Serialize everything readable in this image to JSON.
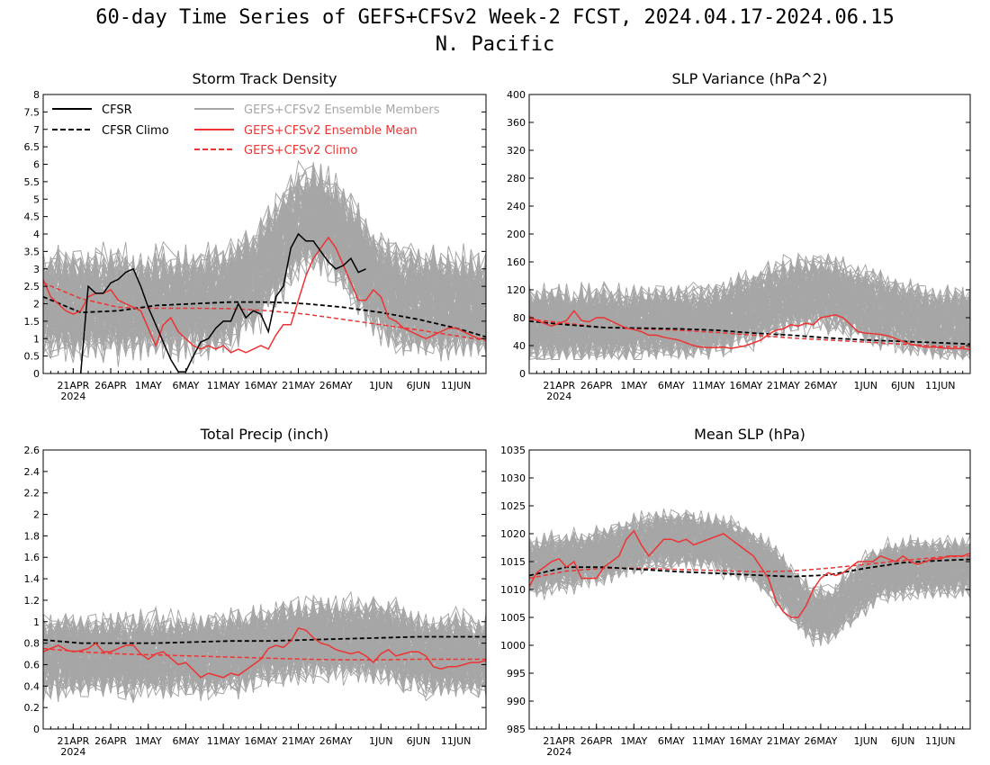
{
  "figure": {
    "title_line1": "60-day Time Series of GEFS+CFSv2 Week-2 FCST, 2024.04.17-2024.06.15",
    "title_line2": "N. Pacific"
  },
  "colors": {
    "cfsr": "#000000",
    "ensemble_members": "#a6a6a6",
    "ensemble_mean": "#ee3333",
    "gefs_climo": "#ee3333",
    "cfsr_climo": "#000000"
  },
  "legend": {
    "cfsr": "CFSR",
    "cfsr_climo": "CFSR Climo",
    "members": "GEFS+CFSv2 Ensemble Members",
    "mean": "GEFS+CFSv2 Ensemble Mean",
    "gefs_climo": "GEFS+CFSv2 Climo"
  },
  "x_axis": {
    "ticks": [
      {
        "day": 4,
        "label": "21APR"
      },
      {
        "day": 9,
        "label": "26APR"
      },
      {
        "day": 14,
        "label": "1MAY"
      },
      {
        "day": 19,
        "label": "6MAY"
      },
      {
        "day": 24,
        "label": "11MAY"
      },
      {
        "day": 29,
        "label": "16MAY"
      },
      {
        "day": 34,
        "label": "21MAY"
      },
      {
        "day": 39,
        "label": "26MAY"
      },
      {
        "day": 45,
        "label": "1JUN"
      },
      {
        "day": 50,
        "label": "6JUN"
      },
      {
        "day": 55,
        "label": "11JUN"
      }
    ],
    "year_label": "2024",
    "xlim": [
      0,
      59
    ]
  },
  "chart_data": [
    {
      "type": "line",
      "title": "Storm Track Density",
      "ylim": [
        0,
        8
      ],
      "yticks": [
        0,
        0.5,
        1,
        1.5,
        2,
        2.5,
        3,
        3.5,
        4,
        4.5,
        5,
        5.5,
        6,
        6.5,
        7,
        7.5,
        8
      ],
      "has_legend": true,
      "members": {
        "base": 2.0,
        "events": [
          [
            36,
            5,
            2.5
          ]
        ],
        "spread": 1.6,
        "max": 6.1,
        "min": 0
      },
      "series": [
        {
          "name": "GEFS+CFSv2 Ensemble Mean",
          "role": "mean",
          "x": [
            0,
            1,
            2,
            3,
            4,
            5,
            6,
            7,
            8,
            9,
            10,
            11,
            12,
            13,
            14,
            15,
            16,
            17,
            18,
            19,
            20,
            21,
            22,
            23,
            24,
            25,
            26,
            27,
            28,
            29,
            30,
            31,
            32,
            33,
            34,
            35,
            36,
            37,
            38,
            39,
            40,
            41,
            42,
            43,
            44,
            45,
            46,
            47,
            48,
            49,
            50,
            51,
            52,
            53,
            54,
            55,
            56,
            57,
            58,
            59
          ],
          "y": [
            2.7,
            2.2,
            2.0,
            1.8,
            1.7,
            1.8,
            2.2,
            2.3,
            2.3,
            2.4,
            2.1,
            2.0,
            1.9,
            1.8,
            1.3,
            0.8,
            1.4,
            1.6,
            1.2,
            1.0,
            0.8,
            0.7,
            0.8,
            0.7,
            0.8,
            0.6,
            0.7,
            0.6,
            0.7,
            0.8,
            0.7,
            1.1,
            1.4,
            1.4,
            2.1,
            2.8,
            3.3,
            3.6,
            3.9,
            3.6,
            3.1,
            2.6,
            2.1,
            2.1,
            2.4,
            2.2,
            1.6,
            1.5,
            1.3,
            1.2,
            1.1,
            1.0,
            1.1,
            1.2,
            1.3,
            1.3,
            1.2,
            1.1,
            1.0,
            1.0
          ]
        },
        {
          "name": "GEFS+CFSv2 Climo",
          "role": "gefs_climo",
          "x": [
            0,
            5,
            10,
            15,
            20,
            25,
            30,
            35,
            40,
            45,
            50,
            55,
            59
          ],
          "y": [
            2.6,
            2.15,
            1.9,
            1.87,
            1.87,
            1.86,
            1.8,
            1.7,
            1.55,
            1.4,
            1.25,
            1.08,
            0.95
          ]
        },
        {
          "name": "CFSR Climo",
          "role": "cfsr_climo",
          "x": [
            0,
            5,
            10,
            15,
            20,
            25,
            30,
            35,
            40,
            45,
            50,
            55,
            59
          ],
          "y": [
            2.2,
            1.75,
            1.8,
            1.95,
            2.0,
            2.05,
            2.05,
            2.0,
            1.9,
            1.75,
            1.55,
            1.3,
            1.05
          ]
        },
        {
          "name": "CFSR",
          "role": "cfsr",
          "x": [
            5,
            6,
            7,
            8,
            9,
            10,
            11,
            12,
            13,
            14,
            15,
            16,
            17,
            18,
            19,
            20,
            21,
            22,
            23,
            24,
            25,
            26,
            27,
            28,
            29,
            30,
            31,
            32,
            33,
            34,
            35,
            36,
            37,
            38,
            39,
            40,
            41,
            42,
            43,
            44,
            45
          ],
          "y": [
            0,
            2.5,
            2.3,
            2.3,
            2.6,
            2.7,
            2.9,
            3.0,
            2.5,
            1.9,
            1.4,
            0.9,
            0.4,
            0.05,
            0.05,
            0.5,
            0.9,
            1.0,
            1.3,
            1.5,
            1.5,
            2.0,
            1.6,
            1.8,
            1.7,
            1.2,
            2.2,
            2.5,
            3.6,
            4.0,
            3.8,
            3.8,
            3.5,
            3.2,
            3.0,
            3.1,
            3.3,
            2.9,
            3.0,
            null,
            null
          ]
        }
      ]
    },
    {
      "type": "line",
      "title": "SLP Variance (hPa^2)",
      "ylim": [
        0,
        400
      ],
      "yticks": [
        0,
        40,
        80,
        120,
        160,
        200,
        240,
        280,
        320,
        360,
        400
      ],
      "has_legend": false,
      "members": {
        "base": 70,
        "events": [
          [
            38,
            7,
            45
          ]
        ],
        "spread": 55,
        "max": 205,
        "min": 20
      },
      "series": [
        {
          "name": "GEFS+CFSv2 Ensemble Mean",
          "role": "mean",
          "x": [
            0,
            1,
            2,
            3,
            4,
            5,
            6,
            7,
            8,
            9,
            10,
            11,
            12,
            13,
            14,
            15,
            16,
            17,
            18,
            19,
            20,
            21,
            22,
            23,
            24,
            25,
            26,
            27,
            28,
            29,
            30,
            31,
            32,
            33,
            34,
            35,
            36,
            37,
            38,
            39,
            40,
            41,
            42,
            43,
            44,
            45,
            46,
            47,
            48,
            49,
            50,
            51,
            52,
            53,
            54,
            55,
            56,
            57,
            58,
            59
          ],
          "y": [
            82,
            76,
            72,
            68,
            72,
            76,
            90,
            76,
            74,
            80,
            80,
            75,
            70,
            65,
            63,
            60,
            55,
            55,
            52,
            50,
            48,
            44,
            40,
            38,
            37,
            37,
            38,
            36,
            38,
            40,
            44,
            48,
            56,
            62,
            64,
            70,
            68,
            72,
            70,
            80,
            82,
            84,
            80,
            70,
            60,
            58,
            57,
            56,
            54,
            50,
            46,
            42,
            40,
            38,
            38,
            37,
            36,
            36,
            36,
            34
          ]
        },
        {
          "name": "GEFS+CFSv2 Climo",
          "role": "gefs_climo",
          "x": [
            0,
            5,
            10,
            15,
            20,
            25,
            30,
            35,
            40,
            45,
            50,
            55,
            59
          ],
          "y": [
            78,
            72,
            66,
            64,
            62,
            59,
            55,
            51,
            48,
            45,
            42,
            39,
            38
          ]
        },
        {
          "name": "CFSR Climo",
          "role": "cfsr_climo",
          "x": [
            0,
            5,
            10,
            15,
            20,
            25,
            30,
            35,
            40,
            45,
            50,
            55,
            59
          ],
          "y": [
            75,
            70,
            66,
            65,
            64,
            62,
            58,
            55,
            51,
            48,
            46,
            44,
            42
          ]
        }
      ]
    },
    {
      "type": "line",
      "title": "Total Precip (inch)",
      "ylim": [
        0,
        2.6
      ],
      "yticks": [
        0,
        0.2,
        0.4,
        0.6,
        0.8,
        1,
        1.2,
        1.4,
        1.6,
        1.8,
        2,
        2.2,
        2.4,
        2.6
      ],
      "has_legend": false,
      "members": {
        "base": 0.68,
        "events": [
          [
            36,
            6,
            0.15
          ],
          [
            45,
            3,
            0.1
          ]
        ],
        "spread": 0.4,
        "max": 1.5,
        "min": 0.05
      },
      "series": [
        {
          "name": "GEFS+CFSv2 Ensemble Mean",
          "role": "mean",
          "x": [
            0,
            1,
            2,
            3,
            4,
            5,
            6,
            7,
            8,
            9,
            10,
            11,
            12,
            13,
            14,
            15,
            16,
            17,
            18,
            19,
            20,
            21,
            22,
            23,
            24,
            25,
            26,
            27,
            28,
            29,
            30,
            31,
            32,
            33,
            34,
            35,
            36,
            37,
            38,
            39,
            40,
            41,
            42,
            43,
            44,
            45,
            46,
            47,
            48,
            49,
            50,
            51,
            52,
            53,
            54,
            55,
            56,
            57,
            58,
            59
          ],
          "y": [
            0.72,
            0.75,
            0.78,
            0.74,
            0.72,
            0.73,
            0.75,
            0.8,
            0.72,
            0.72,
            0.75,
            0.78,
            0.78,
            0.7,
            0.65,
            0.7,
            0.72,
            0.66,
            0.6,
            0.62,
            0.55,
            0.48,
            0.52,
            0.5,
            0.48,
            0.52,
            0.5,
            0.55,
            0.6,
            0.65,
            0.75,
            0.78,
            0.76,
            0.82,
            0.94,
            0.92,
            0.85,
            0.8,
            0.78,
            0.74,
            0.72,
            0.7,
            0.72,
            0.68,
            0.62,
            0.7,
            0.74,
            0.68,
            0.7,
            0.72,
            0.72,
            0.68,
            0.58,
            0.56,
            0.58,
            0.58,
            0.6,
            0.62,
            0.62,
            0.64
          ]
        },
        {
          "name": "GEFS+CFSv2 Climo",
          "role": "gefs_climo",
          "x": [
            0,
            5,
            10,
            15,
            20,
            25,
            30,
            35,
            40,
            45,
            50,
            55,
            59
          ],
          "y": [
            0.75,
            0.72,
            0.7,
            0.69,
            0.68,
            0.67,
            0.66,
            0.65,
            0.645,
            0.645,
            0.65,
            0.65,
            0.65
          ]
        },
        {
          "name": "CFSR Climo",
          "role": "cfsr_climo",
          "x": [
            0,
            5,
            10,
            15,
            20,
            25,
            30,
            35,
            40,
            45,
            50,
            55,
            59
          ],
          "y": [
            0.83,
            0.8,
            0.8,
            0.8,
            0.81,
            0.82,
            0.82,
            0.83,
            0.84,
            0.85,
            0.86,
            0.86,
            0.86
          ]
        }
      ]
    },
    {
      "type": "line",
      "title": "Mean SLP (hPa)",
      "ylim": [
        985,
        1035
      ],
      "yticks": [
        985,
        990,
        995,
        1000,
        1005,
        1010,
        1015,
        1020,
        1025,
        1030,
        1035
      ],
      "has_legend": false,
      "members": {
        "base": 1014,
        "events": [
          [
            20,
            8,
            5
          ],
          [
            39,
            4,
            -9
          ]
        ],
        "spread": 5.5,
        "max": 1030,
        "min": 997
      },
      "series": [
        {
          "name": "GEFS+CFSv2 Ensemble Mean",
          "role": "mean",
          "x": [
            0,
            1,
            2,
            3,
            4,
            5,
            6,
            7,
            8,
            9,
            10,
            11,
            12,
            13,
            14,
            15,
            16,
            17,
            18,
            19,
            20,
            21,
            22,
            23,
            24,
            25,
            26,
            27,
            28,
            29,
            30,
            31,
            32,
            33,
            34,
            35,
            36,
            37,
            38,
            39,
            40,
            41,
            42,
            43,
            44,
            45,
            46,
            47,
            48,
            49,
            50,
            51,
            52,
            53,
            54,
            55,
            56,
            57,
            58,
            59
          ],
          "y": [
            1010.5,
            1013,
            1014,
            1015,
            1015.5,
            1014,
            1015,
            1012,
            1012,
            1012,
            1014,
            1015,
            1016,
            1019,
            1020.5,
            1018,
            1016,
            1017.5,
            1019,
            1019,
            1018.5,
            1019,
            1018,
            1018.5,
            1019,
            1019.5,
            1020,
            1019,
            1018,
            1017,
            1016,
            1014,
            1012,
            1008,
            1006,
            1005,
            1005,
            1007,
            1010,
            1012,
            1013,
            1012.5,
            1013,
            1014,
            1015,
            1015,
            1015,
            1016,
            1015.5,
            1015,
            1016,
            1015,
            1014.5,
            1015,
            1015.5,
            1015.5,
            1016,
            1016,
            1016,
            1016.5
          ]
        },
        {
          "name": "GEFS+CFSv2 Climo",
          "role": "gefs_climo",
          "x": [
            0,
            5,
            10,
            15,
            20,
            25,
            30,
            35,
            40,
            45,
            50,
            55,
            59
          ],
          "y": [
            1012,
            1013.3,
            1013.8,
            1013.8,
            1013.6,
            1013.4,
            1013.2,
            1013.3,
            1013.8,
            1014.5,
            1015.2,
            1015.8,
            1016
          ]
        },
        {
          "name": "CFSR Climo",
          "role": "cfsr_climo",
          "x": [
            0,
            5,
            10,
            15,
            20,
            25,
            30,
            35,
            40,
            45,
            50,
            55,
            59
          ],
          "y": [
            1012.5,
            1014,
            1014,
            1013.6,
            1013.2,
            1012.9,
            1012.6,
            1012.3,
            1012.6,
            1013.8,
            1014.8,
            1015.2,
            1015.4
          ]
        }
      ]
    }
  ]
}
